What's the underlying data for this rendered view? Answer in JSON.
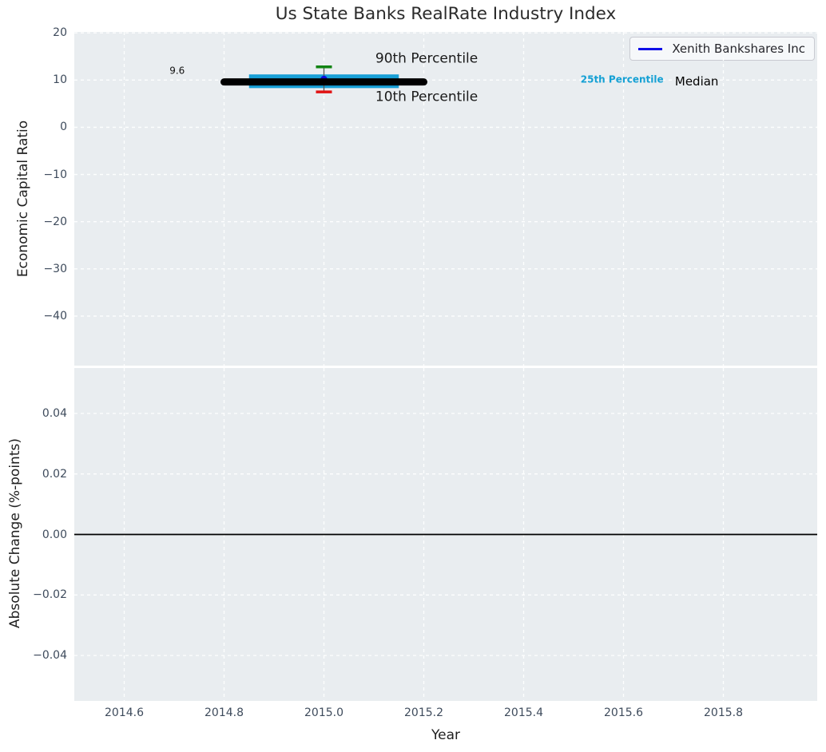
{
  "figure": {
    "title": "Us State Banks RealRate Industry Index",
    "legend": {
      "label": "Xenith Bankshares Inc",
      "line_color": "#0f0fe8"
    },
    "colors": {
      "plot_background": "#e9edf0",
      "gridline": "#ffffff",
      "tick_label": "#3e4b5c"
    }
  },
  "chart_data": [
    {
      "type": "box-percentile-timeseries",
      "panel": "top",
      "title": "Us State Banks RealRate Industry Index",
      "ylabel": "Economic Capital Ratio",
      "xlim": [
        2014.5,
        2015.988
      ],
      "ylim": [
        -50.5,
        20.2
      ],
      "grid": true,
      "legend_position": "upper right",
      "yticks": {
        "values": [
          20,
          10,
          0,
          -10,
          -20,
          -30,
          -40
        ],
        "labels": [
          "20",
          "10",
          "0",
          "−10",
          "−20",
          "−30",
          "−40"
        ]
      },
      "series": [
        {
          "name": "25th Percentile band",
          "type": "band",
          "x": [
            2014.85,
            2015.15
          ],
          "y_low": 8.3,
          "y_high": 11.2,
          "color": "#189fd6"
        },
        {
          "name": "whisker",
          "type": "vline",
          "x": 2015.0,
          "y": [
            7.5,
            12.8
          ],
          "color": "#555555",
          "width": 1.3
        },
        {
          "name": "Xenith Bankshares Inc",
          "type": "point",
          "x": 2015.0,
          "y": 10.2,
          "color": "#0a0ae0",
          "radius": 4.2
        },
        {
          "name": "Median",
          "type": "hline",
          "x": [
            2014.8,
            2015.2
          ],
          "y": 9.6,
          "color": "#000000",
          "width": 9
        },
        {
          "name": "90th Percentile",
          "type": "cap",
          "x": 2015.0,
          "y": 12.8,
          "half_width": 0.016,
          "color": "#108312",
          "width": 3.5
        },
        {
          "name": "10th Percentile",
          "type": "cap",
          "x": 2015.0,
          "y": 7.5,
          "half_width": 0.016,
          "color": "#e11212",
          "width": 3.5
        }
      ],
      "annotations": [
        {
          "text": "9.6",
          "x": 2014.706,
          "y": 11.9,
          "color": "#111111",
          "size": 12,
          "weight": "normal",
          "align": "center"
        },
        {
          "text": "90th Percentile",
          "x": 2015.103,
          "y": 14.45,
          "color": "#1a1a1a",
          "size": 17,
          "weight": "normal",
          "align": "left"
        },
        {
          "text": "10th Percentile",
          "x": 2015.103,
          "y": 6.33,
          "color": "#1a1a1a",
          "size": 17,
          "weight": "normal",
          "align": "left"
        },
        {
          "text": "25th Percentile",
          "x": 2015.514,
          "y": 9.97,
          "color": "#14a0d4",
          "size": 12,
          "weight": "bold",
          "align": "left"
        },
        {
          "text": "Median",
          "x": 2015.703,
          "y": 9.71,
          "color": "#000000",
          "size": 15,
          "weight": "normal",
          "align": "left"
        }
      ]
    },
    {
      "type": "line",
      "panel": "bottom",
      "ylabel": "Absolute Change (%-points)",
      "xlabel": "Year",
      "xlim": [
        2014.5,
        2015.988
      ],
      "ylim": [
        -0.055,
        0.055
      ],
      "grid": true,
      "yticks": {
        "values": [
          0.04,
          0.02,
          0.0,
          -0.02,
          -0.04
        ],
        "labels": [
          "0.04",
          "0.02",
          "0.00",
          "−0.02",
          "−0.04"
        ]
      },
      "xticks": {
        "values": [
          2014.6,
          2014.8,
          2015.0,
          2015.2,
          2015.4,
          2015.6,
          2015.8
        ],
        "labels": [
          "2014.6",
          "2014.8",
          "2015.0",
          "2015.2",
          "2015.4",
          "2015.6",
          "2015.8"
        ]
      },
      "zero_line": {
        "y": 0.0,
        "color": "#000000",
        "width": 1.7
      },
      "series": []
    }
  ]
}
